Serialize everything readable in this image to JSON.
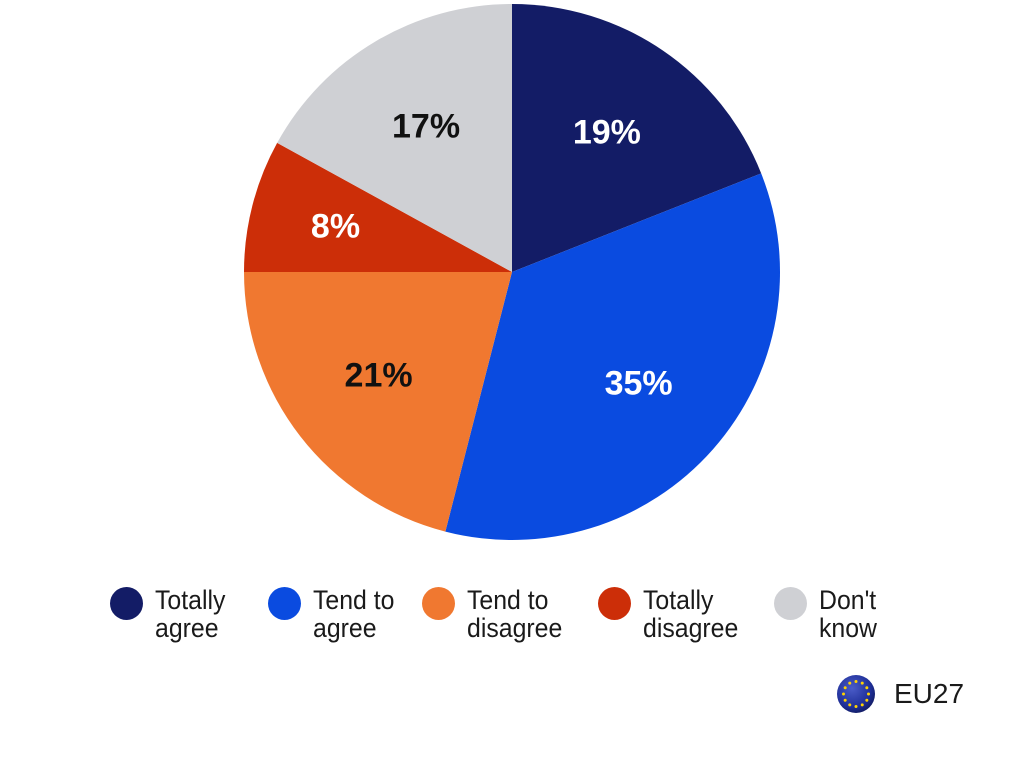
{
  "chart_data": {
    "type": "pie",
    "slices": [
      {
        "label": "Totally agree",
        "value": 19,
        "value_label": "19%",
        "color": "#131c66",
        "label_color": "#ffffff"
      },
      {
        "label": "Tend to agree",
        "value": 35,
        "value_label": "35%",
        "color": "#0a4be0",
        "label_color": "#ffffff"
      },
      {
        "label": "Tend to disagree",
        "value": 21,
        "value_label": "21%",
        "color": "#f07830",
        "label_color": "#111111"
      },
      {
        "label": "Totally disagree",
        "value": 8,
        "value_label": "8%",
        "color": "#cc2e08",
        "label_color": "#ffffff"
      },
      {
        "label": "Don't know",
        "value": 17,
        "value_label": "17%",
        "color": "#cfd0d4",
        "label_color": "#111111"
      }
    ],
    "legend_position": "bottom"
  },
  "legend": {
    "items": [
      {
        "text": "Totally\nagree"
      },
      {
        "text": "Tend to\nagree"
      },
      {
        "text": "Tend to\ndisagree"
      },
      {
        "text": "Totally\ndisagree"
      },
      {
        "text": "Don't\nknow"
      }
    ]
  },
  "region": {
    "label": "EU27",
    "icon": "eu-flag-icon"
  }
}
